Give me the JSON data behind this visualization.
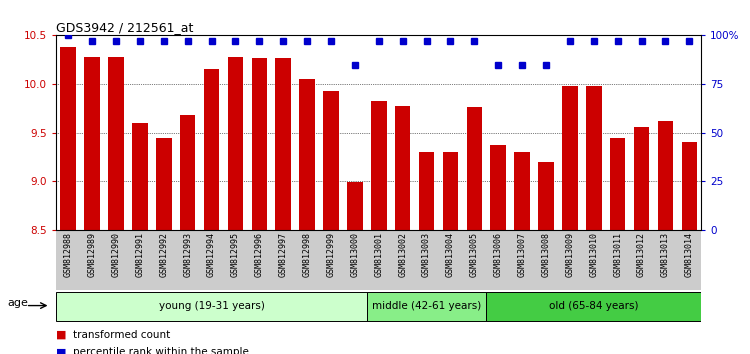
{
  "title": "GDS3942 / 212561_at",
  "samples": [
    "GSM812988",
    "GSM812989",
    "GSM812990",
    "GSM812991",
    "GSM812992",
    "GSM812993",
    "GSM812994",
    "GSM812995",
    "GSM812996",
    "GSM812997",
    "GSM812998",
    "GSM812999",
    "GSM813000",
    "GSM813001",
    "GSM813002",
    "GSM813003",
    "GSM813004",
    "GSM813005",
    "GSM813006",
    "GSM813007",
    "GSM813008",
    "GSM813009",
    "GSM813010",
    "GSM813011",
    "GSM813012",
    "GSM813013",
    "GSM813014"
  ],
  "bar_values": [
    10.38,
    10.28,
    10.28,
    9.6,
    9.45,
    9.68,
    10.15,
    10.28,
    10.27,
    10.27,
    10.05,
    9.93,
    8.99,
    9.83,
    9.77,
    9.3,
    9.3,
    9.76,
    9.37,
    9.3,
    9.2,
    9.98,
    9.98,
    9.45,
    9.56,
    9.62,
    9.4
  ],
  "percentile_values": [
    100,
    97,
    97,
    97,
    97,
    97,
    97,
    97,
    97,
    97,
    97,
    97,
    85,
    97,
    97,
    97,
    97,
    97,
    85,
    85,
    85,
    97,
    97,
    97,
    97,
    97,
    97
  ],
  "bar_color": "#cc0000",
  "percentile_color": "#0000cc",
  "ylim_left": [
    8.5,
    10.5
  ],
  "ylim_right": [
    0,
    100
  ],
  "yticks_left": [
    8.5,
    9.0,
    9.5,
    10.0,
    10.5
  ],
  "yticks_right": [
    0,
    25,
    50,
    75,
    100
  ],
  "ytick_right_labels": [
    "0",
    "25",
    "50",
    "75",
    "100%"
  ],
  "groups": [
    {
      "label": "young (19-31 years)",
      "start": 0,
      "end": 13,
      "color": "#ccffcc"
    },
    {
      "label": "middle (42-61 years)",
      "start": 13,
      "end": 18,
      "color": "#88ee88"
    },
    {
      "label": "old (65-84 years)",
      "start": 18,
      "end": 27,
      "color": "#44cc44"
    }
  ],
  "tick_area_bg": "#cccccc",
  "legend_red_label": "transformed count",
  "legend_blue_label": "percentile rank within the sample",
  "age_label": "age"
}
